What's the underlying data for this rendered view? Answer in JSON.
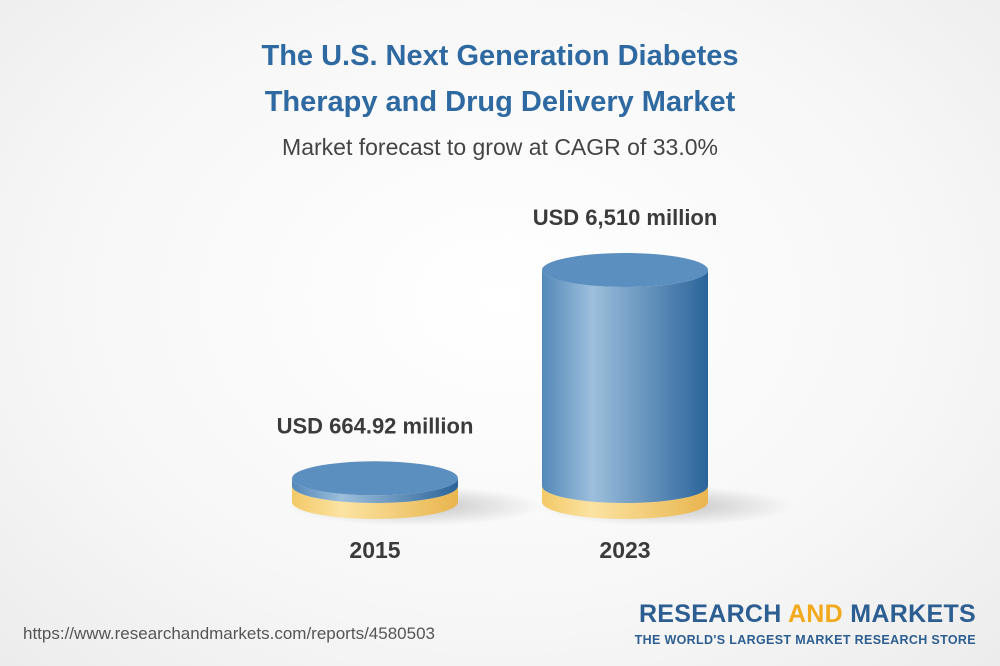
{
  "header": {
    "title_line1": "The U.S. Next Generation Diabetes",
    "title_line2": "Therapy and Drug Delivery Market",
    "subtitle": "Market forecast to grow at CAGR of 33.0%"
  },
  "chart_data": {
    "type": "bar",
    "style": "3d-cylinder",
    "title": "The U.S. Next Generation Diabetes Therapy and Drug Delivery Market",
    "subtitle": "Market forecast to grow at CAGR of 33.0%",
    "categories": [
      "2015",
      "2023"
    ],
    "values": [
      664.92,
      6510
    ],
    "units": "USD million",
    "data_labels": [
      "USD 664.92 million",
      "USD 6,510 million"
    ],
    "cagr": "33.0%",
    "xlabel": "",
    "ylabel": ""
  },
  "colors": {
    "title": "#2e6aa1",
    "gold_light": "#fce8a6",
    "gold": "#f6d27c",
    "gold_dark": "#e8b54d",
    "blue_light": "#9fc0dc",
    "blue": "#5b8fbf",
    "blue_dark": "#2f679c"
  },
  "footer": {
    "url": "https://www.researchandmarkets.com/reports/4580503",
    "logo_part1": "RESEARCH ",
    "logo_accent": "AND",
    "logo_part2": " MARKETS",
    "tagline": "THE WORLD'S LARGEST MARKET RESEARCH STORE"
  }
}
